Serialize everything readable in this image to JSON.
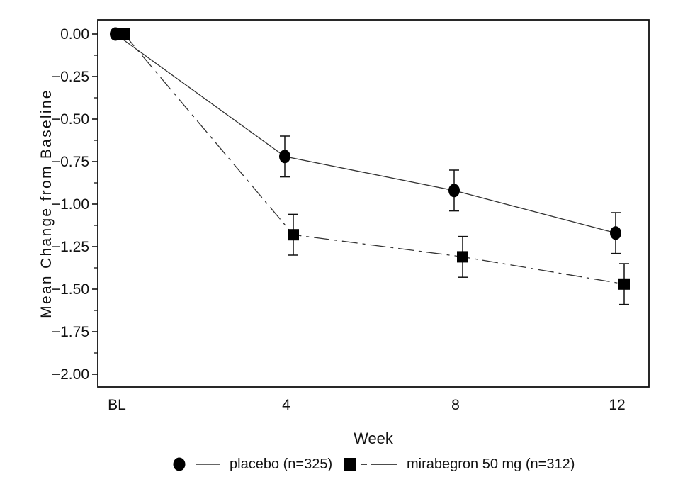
{
  "figure": {
    "background": "#ffffff",
    "foreground": "#111111",
    "marker_fill": "#000000",
    "line_color": "#333333"
  },
  "chart_data": {
    "type": "line",
    "title": "",
    "xlabel": "Week",
    "ylabel": "Mean Change from Baseline",
    "x_categories": [
      "BL",
      "4",
      "8",
      "12"
    ],
    "y_tick_labels": [
      "0.00",
      "−0.25",
      "−0.50",
      "−0.75",
      "−1.00",
      "−1.25",
      "−1.50",
      "−1.75",
      "−2.00"
    ],
    "y_tick_values": [
      0,
      -0.25,
      -0.5,
      -0.75,
      -1,
      -1.25,
      -1.5,
      -1.75,
      -2
    ],
    "ylim": [
      0.083,
      -2.075
    ],
    "grid": false,
    "legend_position": "bottom",
    "series": [
      {
        "name": "placebo (n=325)",
        "marker": "circle",
        "line_style": "solid",
        "values": [
          0,
          -0.72,
          -0.92,
          -1.17
        ],
        "errors": [
          0,
          0.12,
          0.12,
          0.12
        ]
      },
      {
        "name": "mirabegron 50 mg (n=312)",
        "marker": "square",
        "line_style": "dash-dot",
        "values": [
          0,
          -1.18,
          -1.31,
          -1.47
        ],
        "errors": [
          0,
          0.12,
          0.12,
          0.12
        ]
      }
    ]
  }
}
